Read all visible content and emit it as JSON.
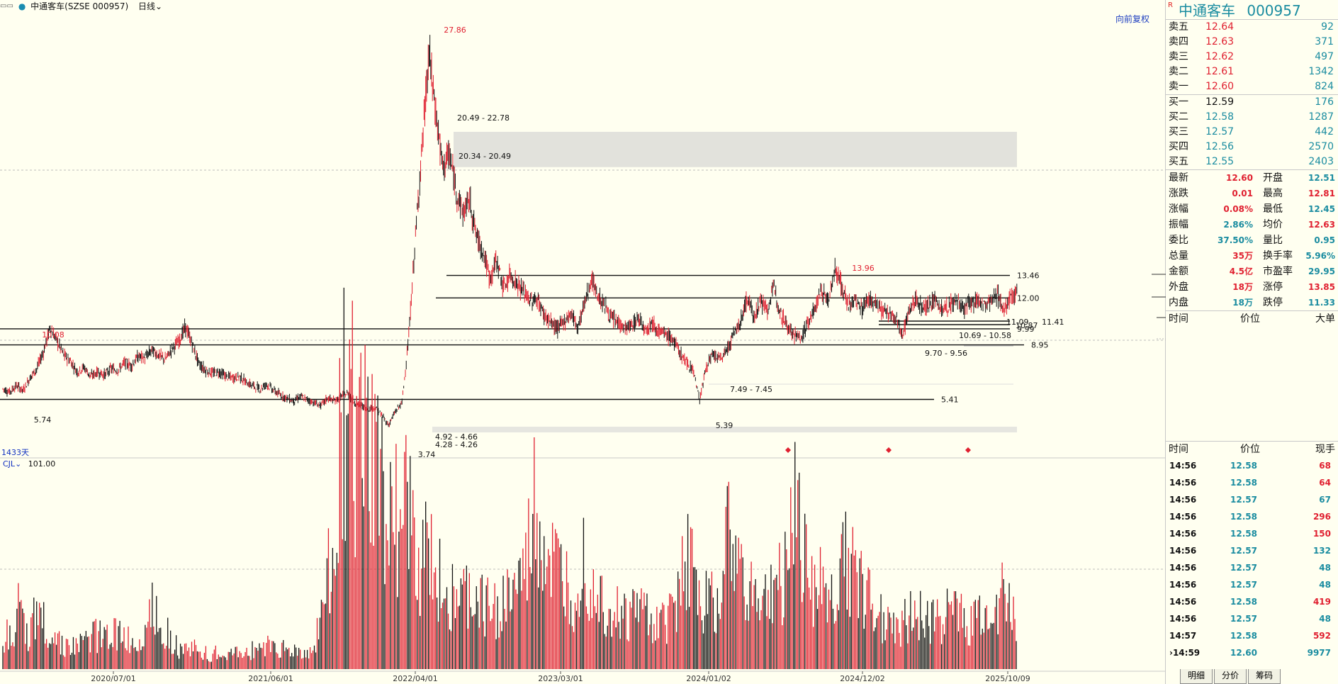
{
  "topbar": {
    "stock_label": "中通客车(SZSE 000957)",
    "period": "日线",
    "adjust": "向前复权",
    "days": "1433天"
  },
  "volume": {
    "indicator": "CJL",
    "value": "101.00"
  },
  "chart_data": {
    "type": "candlestick",
    "price_annotations": {
      "high_peak": "27.86",
      "left_peak": "10.08",
      "right_peak": "13.96",
      "low_left": "5.74",
      "low_min": "3.74",
      "low_mid": "5.39"
    },
    "levels": [
      {
        "label": "13.46",
        "value": 13.46
      },
      {
        "label": "12.00",
        "value": 12.0
      },
      {
        "label": "9.99",
        "value": 9.99
      },
      {
        "label": "8.95",
        "value": 8.95
      },
      {
        "label": "5.41",
        "value": 5.41
      }
    ],
    "zones": [
      {
        "label_top": "20.49 - 22.78",
        "label_bottom": "20.34 - 20.49",
        "from": 20.49,
        "to": 22.78
      },
      {
        "label": "7.49 - 7.45"
      },
      {
        "label": "10.69 - 10.58"
      },
      {
        "label": "9.70 - 9.56"
      },
      {
        "label": "4.92 - 4.66"
      },
      {
        "label": "4.28 - 4.26"
      },
      {
        "label": "11.41"
      },
      {
        "label": "10.87"
      },
      {
        "label": "11.09"
      }
    ],
    "x_dates": [
      "2020/07/01",
      "2021/06/01",
      "2022/04/01",
      "2023/03/01",
      "2024/01/02",
      "2024/12/02",
      "2025/10/09"
    ],
    "y_range": [
      3.5,
      29.5
    ],
    "price_path": [
      6.1,
      5.9,
      6.3,
      6.0,
      6.8,
      7.4,
      8.5,
      10.08,
      9.2,
      8.3,
      7.9,
      7.2,
      7.5,
      6.9,
      7.2,
      7.0,
      7.4,
      7.3,
      7.8,
      7.6,
      8.2,
      8.1,
      8.6,
      8.3,
      8.0,
      8.7,
      9.2,
      10.1,
      9.0,
      7.7,
      7.3,
      7.1,
      7.2,
      6.9,
      6.8,
      6.9,
      6.5,
      6.3,
      6.1,
      6.4,
      6.0,
      5.7,
      5.5,
      5.3,
      5.6,
      5.4,
      5.2,
      5.0,
      5.5,
      5.3,
      5.6,
      5.8,
      5.2,
      5.0,
      4.8,
      4.9,
      4.4,
      3.74,
      4.6,
      5.2,
      9.5,
      16.0,
      22.0,
      27.86,
      24.0,
      20.5,
      21.3,
      19.0,
      17.5,
      18.4,
      16.0,
      15.0,
      13.2,
      14.5,
      12.6,
      13.5,
      12.9,
      12.4,
      11.8,
      11.9,
      10.9,
      10.4,
      10.0,
      10.5,
      11.0,
      10.1,
      11.7,
      13.2,
      12.1,
      11.5,
      10.6,
      10.4,
      10.0,
      10.2,
      10.7,
      10.0,
      10.4,
      9.8,
      9.6,
      9.3,
      8.5,
      7.8,
      7.4,
      5.39,
      7.6,
      8.3,
      8.0,
      8.6,
      9.6,
      10.4,
      12.0,
      10.8,
      11.8,
      11.2,
      12.7,
      11.0,
      10.2,
      9.6,
      9.4,
      10.4,
      11.3,
      12.5,
      11.8,
      13.96,
      12.7,
      11.5,
      11.8,
      11.3,
      12.0,
      11.6,
      11.2,
      10.9,
      10.6,
      9.7,
      11.2,
      11.9,
      11.4,
      11.6,
      11.8,
      11.2,
      11.5,
      11.9,
      11.3,
      11.6,
      11.9,
      11.5,
      11.8,
      12.2,
      11.3,
      11.9,
      12.6
    ],
    "volume_path": [
      25,
      40,
      55,
      30,
      65,
      45,
      35,
      28,
      22,
      20,
      25,
      30,
      35,
      28,
      40,
      32,
      26,
      22,
      45,
      65,
      50,
      30,
      22,
      18,
      20,
      16,
      14,
      15,
      12,
      14,
      16,
      18,
      20,
      22,
      24,
      20,
      16,
      18,
      15,
      14,
      45,
      90,
      170,
      250,
      235,
      220,
      200,
      190,
      175,
      160,
      140,
      150,
      120,
      110,
      100,
      90,
      80,
      70,
      65,
      70,
      60,
      65,
      55,
      60,
      70,
      80,
      90,
      150,
      120,
      100,
      90,
      80,
      70,
      110,
      90,
      75,
      60,
      55,
      50,
      48,
      60,
      55,
      45,
      40,
      50,
      70,
      110,
      90,
      80,
      60,
      70,
      130,
      110,
      90,
      80,
      70,
      60,
      75,
      85,
      95,
      180,
      110,
      90,
      80,
      70,
      60,
      120,
      95,
      80,
      75,
      60,
      55,
      50,
      45,
      48,
      52,
      50,
      55,
      45,
      50,
      60,
      55,
      48,
      52,
      50,
      60,
      70,
      55,
      40
    ]
  },
  "panel": {
    "stock_name": "中通客车",
    "stock_code": "000957",
    "r_mark": "R",
    "asks": [
      {
        "label": "卖五",
        "price": "12.64",
        "vol": "92"
      },
      {
        "label": "卖四",
        "price": "12.63",
        "vol": "371"
      },
      {
        "label": "卖三",
        "price": "12.62",
        "vol": "497"
      },
      {
        "label": "卖二",
        "price": "12.61",
        "vol": "1342"
      },
      {
        "label": "卖一",
        "price": "12.60",
        "vol": "824"
      }
    ],
    "bids": [
      {
        "label": "买一",
        "price": "12.59",
        "vol": "176"
      },
      {
        "label": "买二",
        "price": "12.58",
        "vol": "1287"
      },
      {
        "label": "买三",
        "price": "12.57",
        "vol": "442"
      },
      {
        "label": "买四",
        "price": "12.56",
        "vol": "2570"
      },
      {
        "label": "买五",
        "price": "12.55",
        "vol": "2403"
      }
    ],
    "stats": [
      {
        "k1": "最新",
        "v1": "12.60",
        "c1": "red",
        "k2": "开盘",
        "v2": "12.51",
        "c2": "teal"
      },
      {
        "k1": "涨跌",
        "v1": "0.01",
        "c1": "red",
        "k2": "最高",
        "v2": "12.81",
        "c2": "red"
      },
      {
        "k1": "涨幅",
        "v1": "0.08%",
        "c1": "red",
        "k2": "最低",
        "v2": "12.45",
        "c2": "teal"
      },
      {
        "k1": "振幅",
        "v1": "2.86%",
        "c1": "teal",
        "k2": "均价",
        "v2": "12.63",
        "c2": "red"
      },
      {
        "k1": "委比",
        "v1": "37.50%",
        "c1": "teal",
        "k2": "量比",
        "v2": "0.95",
        "c2": "teal"
      },
      {
        "k1": "总量",
        "v1": "35万",
        "c1": "red",
        "k2": "换手率",
        "v2": "5.96%",
        "c2": "teal"
      },
      {
        "k1": "金额",
        "v1": "4.5亿",
        "c1": "red",
        "k2": "市盈率",
        "v2": "29.95",
        "c2": "teal"
      },
      {
        "k1": "外盘",
        "v1": "18万",
        "c1": "red",
        "k2": "涨停",
        "v2": "13.85",
        "c2": "red"
      },
      {
        "k1": "内盘",
        "v1": "18万",
        "c1": "teal",
        "k2": "跌停",
        "v2": "11.33",
        "c2": "teal"
      }
    ],
    "big_header": {
      "time": "时间",
      "price": "价位",
      "size": "大单"
    },
    "tick_header": {
      "time": "时间",
      "price": "价位",
      "size": "现手"
    },
    "ticks": [
      {
        "time": "14:56",
        "price": "12.58",
        "qty": "68",
        "dir": "red"
      },
      {
        "time": "14:56",
        "price": "12.58",
        "qty": "64",
        "dir": "red"
      },
      {
        "time": "14:56",
        "price": "12.57",
        "qty": "67",
        "dir": "teal"
      },
      {
        "time": "14:56",
        "price": "12.58",
        "qty": "296",
        "dir": "red"
      },
      {
        "time": "14:56",
        "price": "12.58",
        "qty": "150",
        "dir": "red"
      },
      {
        "time": "14:56",
        "price": "12.57",
        "qty": "132",
        "dir": "teal"
      },
      {
        "time": "14:56",
        "price": "12.57",
        "qty": "48",
        "dir": "teal"
      },
      {
        "time": "14:56",
        "price": "12.57",
        "qty": "48",
        "dir": "teal"
      },
      {
        "time": "14:56",
        "price": "12.58",
        "qty": "419",
        "dir": "red"
      },
      {
        "time": "14:56",
        "price": "12.57",
        "qty": "48",
        "dir": "teal"
      },
      {
        "time": "14:57",
        "price": "12.58",
        "qty": "592",
        "dir": "red"
      },
      {
        "time": "14:59",
        "price": "12.60",
        "qty": "9977",
        "dir": "teal"
      }
    ],
    "tabs": [
      "明细",
      "分价",
      "筹码"
    ]
  }
}
